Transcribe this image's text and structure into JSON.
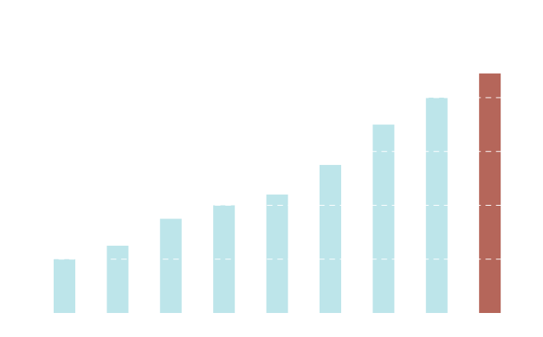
{
  "chart_data": {
    "type": "bar",
    "values": [
      1,
      1.25,
      1.75,
      2,
      2.2,
      2.75,
      3.5,
      4,
      4.45
    ],
    "colors": [
      "#bde5ea",
      "#bde5ea",
      "#bde5ea",
      "#bde5ea",
      "#bde5ea",
      "#bde5ea",
      "#bde5ea",
      "#bde5ea",
      "#b5665a"
    ],
    "ylim": [
      0,
      5
    ],
    "yticks": [
      1,
      2,
      3,
      4
    ],
    "grid": true
  }
}
